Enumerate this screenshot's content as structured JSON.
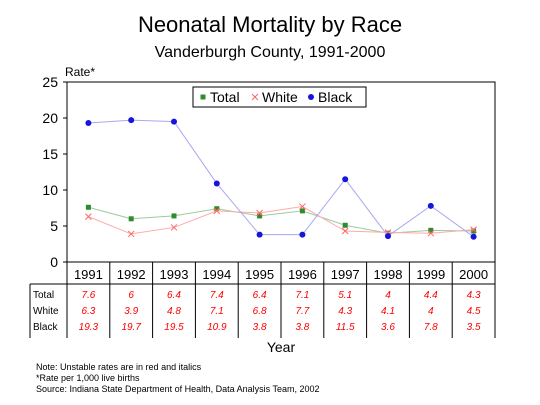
{
  "chart_data": {
    "type": "line",
    "title": "Neonatal Mortality by Race",
    "subtitle": "Vanderburgh County, 1991-2000",
    "ylabel": "Rate*",
    "xlabel": "Year",
    "ylim": [
      0,
      25
    ],
    "yticks": [
      "0",
      "5",
      "10",
      "15",
      "20",
      "25"
    ],
    "categories": [
      "1991",
      "1992",
      "1993",
      "1994",
      "1995",
      "1996",
      "1997",
      "1998",
      "1999",
      "2000"
    ],
    "legend_position": "top-center",
    "series": [
      {
        "name": "Total",
        "color": "#2e8b2e",
        "line_color": "#9acd9a",
        "marker": "square",
        "values": [
          7.6,
          6,
          6.4,
          7.4,
          6.4,
          7.1,
          5.1,
          4,
          4.4,
          4.3
        ],
        "labels": [
          "7.6",
          "6",
          "6.4",
          "7.4",
          "6.4",
          "7.1",
          "5.1",
          "4",
          "4.4",
          "4.3"
        ]
      },
      {
        "name": "White",
        "color": "#ff6666",
        "line_color": "#ffaaaa",
        "marker": "x",
        "values": [
          6.3,
          3.9,
          4.8,
          7.1,
          6.8,
          7.7,
          4.3,
          4.1,
          4,
          4.5
        ],
        "labels": [
          "6.3",
          "3.9",
          "4.8",
          "7.1",
          "6.8",
          "7.7",
          "4.3",
          "4.1",
          "4",
          "4.5"
        ]
      },
      {
        "name": "Black",
        "color": "#1515dd",
        "line_color": "#a8a8ee",
        "marker": "circle",
        "values": [
          19.3,
          19.7,
          19.5,
          10.9,
          3.8,
          3.8,
          11.5,
          3.6,
          7.8,
          3.5
        ],
        "labels": [
          "19.3",
          "19.7",
          "19.5",
          "10.9",
          "3.8",
          "3.8",
          "11.5",
          "3.6",
          "7.8",
          "3.5"
        ]
      }
    ],
    "table": {
      "row_labels": [
        "Total",
        "White",
        "Black"
      ],
      "value_color": "#ff0000"
    },
    "grid": false,
    "notes": [
      "Note:  Unstable rates are in red and italics",
      "*Rate per 1,000 live births",
      "Source:  Indiana State Department of Health, Data Analysis Team, 2002"
    ]
  }
}
